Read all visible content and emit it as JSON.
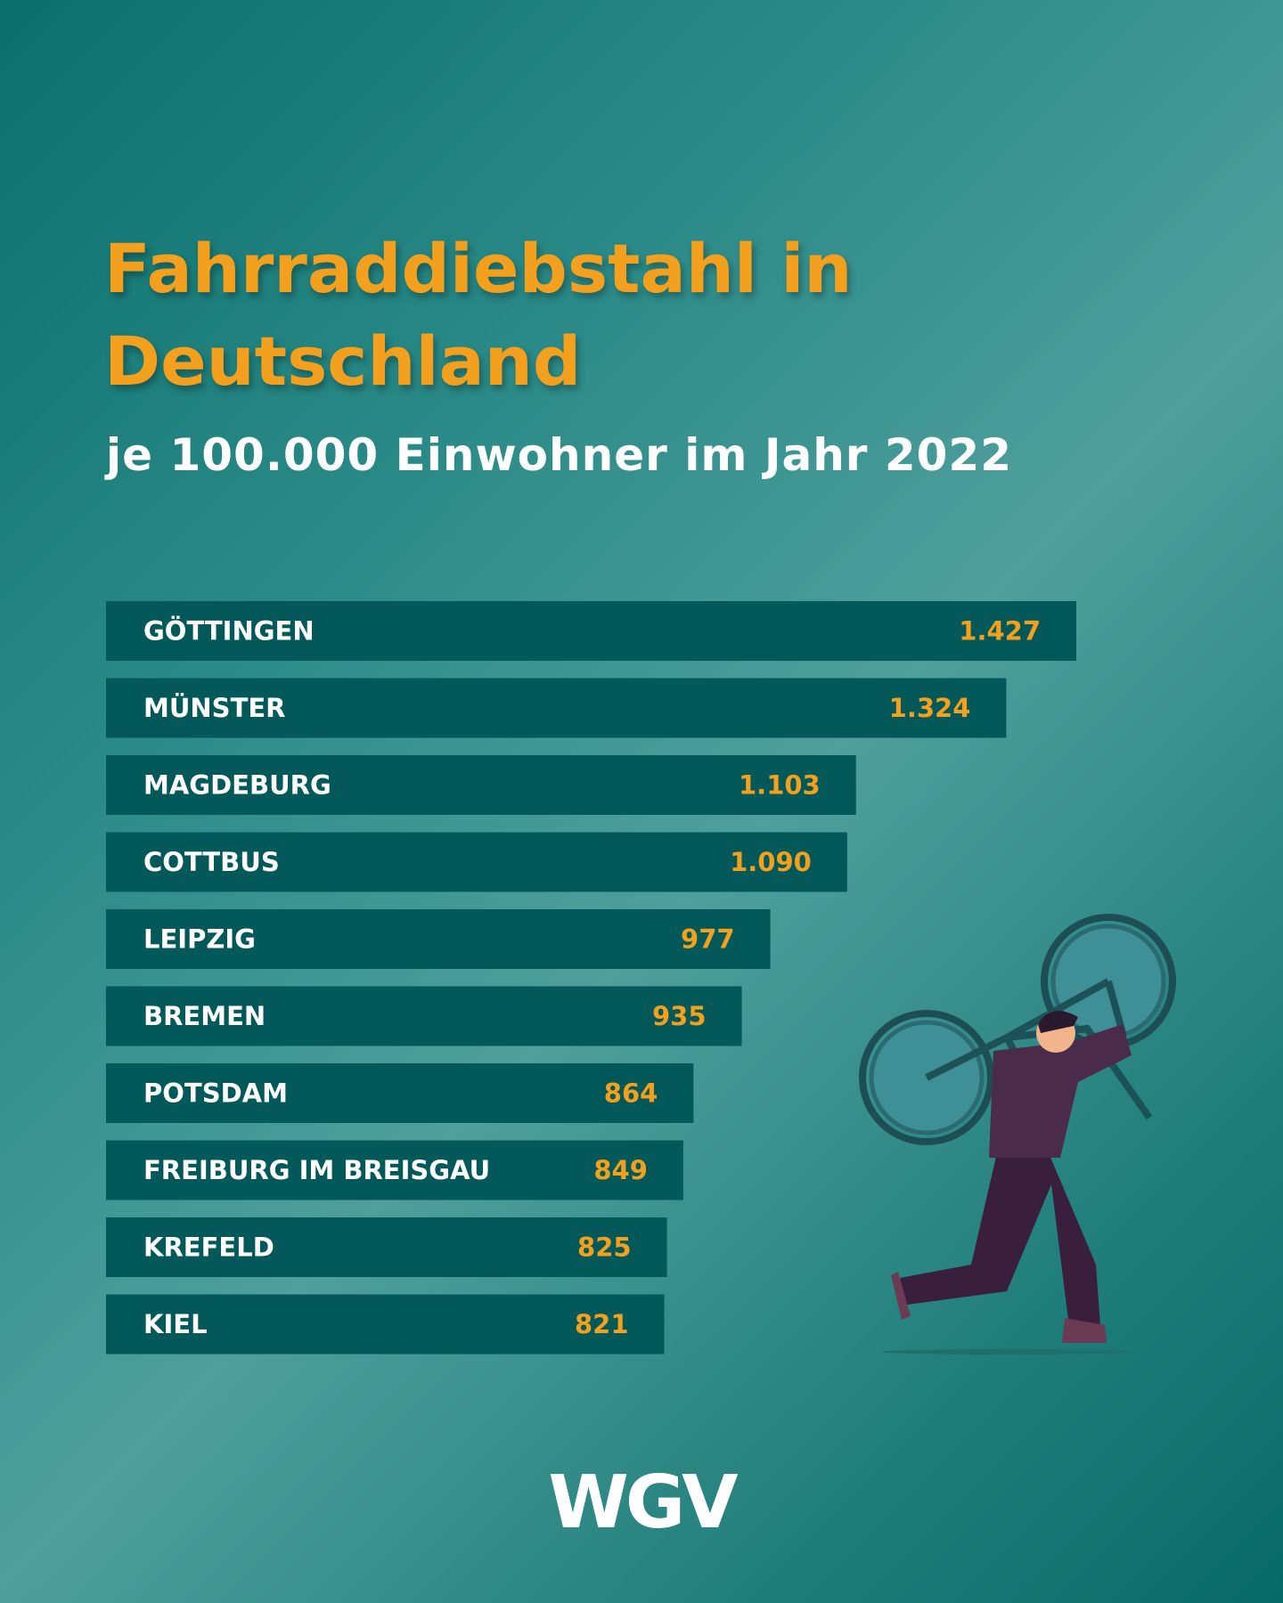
{
  "chart_data": {
    "type": "bar",
    "orientation": "horizontal",
    "title": "Fahrraddiebstahl in Deutschland",
    "subtitle": "je 100.000 Einwohner im Jahr 2022",
    "categories": [
      "GÖTTINGEN",
      "MÜNSTER",
      "MAGDEBURG",
      "COTTBUS",
      "LEIPZIG",
      "BREMEN",
      "POTSDAM",
      "FREIBURG IM BREISGAU",
      "KREFELD",
      "KIEL"
    ],
    "values": [
      1427,
      1324,
      1103,
      1090,
      977,
      935,
      864,
      849,
      825,
      821
    ],
    "value_labels": [
      "1.427",
      "1.324",
      "1.103",
      "1.090",
      "977",
      "935",
      "864",
      "849",
      "825",
      "821"
    ],
    "color": "#03585a",
    "value_label_color": "#f2a01e",
    "logo": "WGV"
  }
}
